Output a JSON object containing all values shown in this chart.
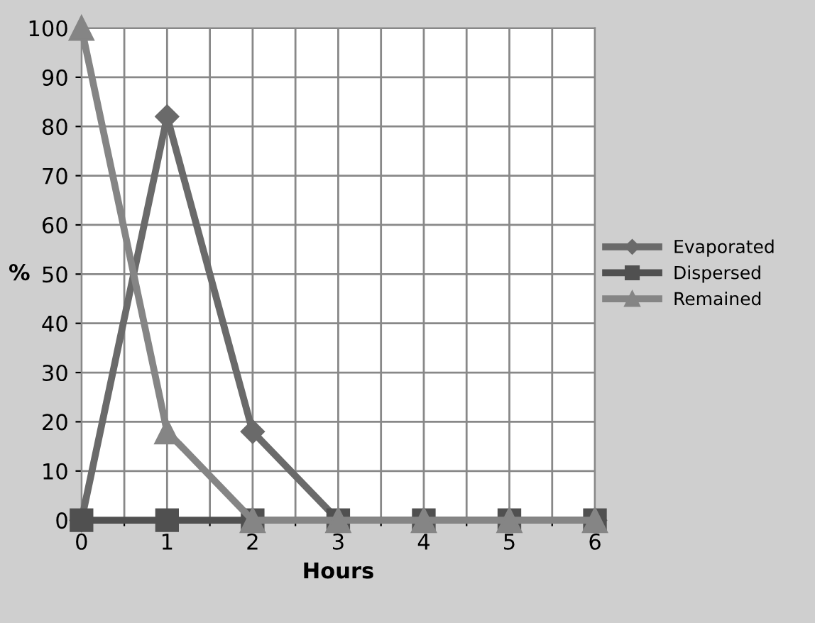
{
  "chart_data": {
    "type": "line",
    "xlabel": "Hours",
    "ylabel": "%",
    "x": [
      0,
      1,
      2,
      3,
      4,
      5,
      6
    ],
    "series": [
      {
        "name": "Evaporated",
        "color": "#6a6a6a",
        "marker": "diamond",
        "values": [
          0,
          82,
          18,
          0,
          0,
          0,
          0
        ]
      },
      {
        "name": "Dispersed",
        "color": "#505050",
        "marker": "square",
        "values": [
          0,
          0,
          0,
          0,
          0,
          0,
          0
        ]
      },
      {
        "name": "Remained",
        "color": "#858585",
        "marker": "triangle",
        "values": [
          100,
          18,
          0,
          0,
          0,
          0,
          0
        ]
      }
    ],
    "xlim": [
      0,
      6
    ],
    "ylim": [
      0,
      100
    ],
    "xticks": [
      0,
      {
        "value": 0.5,
        "label": null
      },
      1,
      {
        "value": 1.5,
        "label": null
      },
      2,
      {
        "value": 2.5,
        "label": null
      },
      3,
      {
        "value": 3.5,
        "label": null
      },
      4,
      {
        "value": 4.5,
        "label": null
      },
      5,
      {
        "value": 5.5,
        "label": null
      },
      6
    ],
    "yticks": [
      0,
      10,
      20,
      30,
      40,
      50,
      60,
      70,
      80,
      90,
      100
    ],
    "grid": true,
    "legend": "right"
  }
}
